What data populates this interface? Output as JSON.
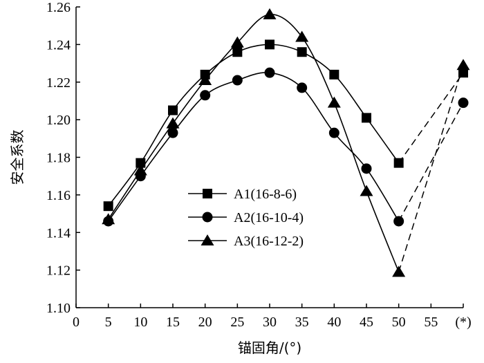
{
  "chart_data": {
    "type": "line",
    "xlabel": "锚固角/(°)",
    "ylabel": "安全系数",
    "xlim": [
      0,
      60
    ],
    "ylim": [
      1.1,
      1.26
    ],
    "x_ticks": [
      0,
      5,
      10,
      15,
      20,
      25,
      30,
      35,
      40,
      45,
      50,
      55
    ],
    "x_tick_labels": [
      "0",
      "5",
      "10",
      "15",
      "20",
      "25",
      "30",
      "35",
      "40",
      "45",
      "50",
      "55"
    ],
    "extra_x_tick": {
      "x": 60,
      "label": "(*)"
    },
    "y_ticks": [
      1.1,
      1.12,
      1.14,
      1.16,
      1.18,
      1.2,
      1.22,
      1.24,
      1.26
    ],
    "y_tick_labels": [
      "1.10",
      "1.12",
      "1.14",
      "1.16",
      "1.18",
      "1.20",
      "1.22",
      "1.24",
      "1.26"
    ],
    "x": [
      5,
      10,
      15,
      20,
      25,
      30,
      35,
      40,
      45,
      50
    ],
    "grid": false,
    "legend_position": "center-left",
    "series": [
      {
        "name": "A1(16-8-6)",
        "marker": "square",
        "values": [
          1.154,
          1.177,
          1.205,
          1.224,
          1.236,
          1.24,
          1.236,
          1.224,
          1.201,
          1.177
        ],
        "star_value": 1.225
      },
      {
        "name": "A2(16-10-4)",
        "marker": "circle",
        "values": [
          1.146,
          1.17,
          1.193,
          1.213,
          1.221,
          1.225,
          1.217,
          1.193,
          1.174,
          1.146
        ],
        "star_value": 1.209
      },
      {
        "name": "A3(16-12-2)",
        "marker": "triangle",
        "values": [
          1.147,
          1.173,
          1.198,
          1.221,
          1.241,
          1.256,
          1.244,
          1.209,
          1.162,
          1.119
        ],
        "star_value": 1.229
      }
    ]
  }
}
